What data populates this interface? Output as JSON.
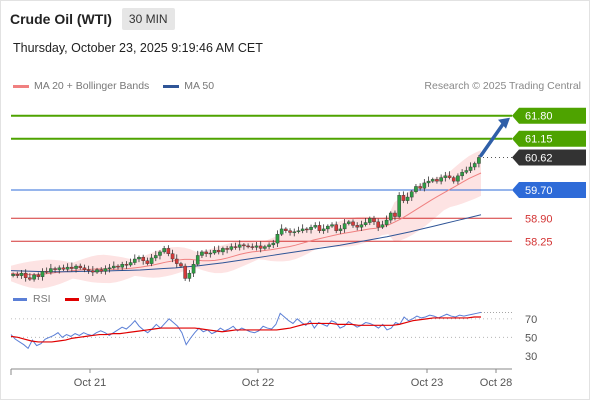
{
  "header": {
    "title": "Crude Oil (WTI)",
    "timeframe": "30 MIN",
    "timestamp": "Thursday, October 23, 2025 9:19:46 AM CET"
  },
  "legend": [
    {
      "label": "MA 20 + Bollinger Bands",
      "color": "#f08080"
    },
    {
      "label": "MA 50",
      "color": "#2f5597"
    }
  ],
  "credit": "Research © 2025 Trading Central",
  "rsi_legend": [
    {
      "label": "RSI",
      "color": "#5b7fd6"
    },
    {
      "label": "9MA",
      "color": "#e00000"
    }
  ],
  "colors": {
    "resistance": "#4ea300",
    "current": "#333333",
    "pivot": "#2e6bd8",
    "support": "#d33434",
    "bollinger_fill": "#fde3e3",
    "candle_up": "#2e9e44",
    "candle_down": "#d43a3a",
    "arrow": "#2f5fa8"
  },
  "chart_data": [
    {
      "type": "line",
      "chart": "price",
      "title": "Crude Oil (WTI)",
      "timeframe": "30 MIN",
      "ylim": [
        57.1,
        62.3
      ],
      "x_ticks": [
        "Oct 21",
        "Oct 22",
        "Oct 23",
        "Oct 28"
      ],
      "levels": [
        {
          "value": 61.8,
          "label": "61.80",
          "kind": "resistance"
        },
        {
          "value": 61.15,
          "label": "61.15",
          "kind": "resistance"
        },
        {
          "value": 60.62,
          "label": "60.62",
          "kind": "current"
        },
        {
          "value": 59.7,
          "label": "59.70",
          "kind": "pivot"
        },
        {
          "value": 58.9,
          "label": "58.90",
          "kind": "support"
        },
        {
          "value": 58.25,
          "label": "58.25",
          "kind": "support"
        }
      ],
      "close_series": [
        57.32,
        57.28,
        57.35,
        57.22,
        57.18,
        57.3,
        57.25,
        57.4,
        57.38,
        57.48,
        57.45,
        57.5,
        57.46,
        57.52,
        57.48,
        57.55,
        57.5,
        57.45,
        57.42,
        57.38,
        57.45,
        57.4,
        57.48,
        57.5,
        57.55,
        57.52,
        57.6,
        57.58,
        57.65,
        57.75,
        57.8,
        57.7,
        57.62,
        57.78,
        57.85,
        57.95,
        58.05,
        57.9,
        57.75,
        57.62,
        57.55,
        57.2,
        57.35,
        57.6,
        57.85,
        57.95,
        57.9,
        57.92,
        58.0,
        57.95,
        58.05,
        58.02,
        58.1,
        58.08,
        58.15,
        58.12,
        58.1,
        58.08,
        58.12,
        58.05,
        58.1,
        58.15,
        58.2,
        58.45,
        58.6,
        58.55,
        58.5,
        58.52,
        58.55,
        58.6,
        58.58,
        58.65,
        58.7,
        58.55,
        58.6,
        58.68,
        58.72,
        58.55,
        58.6,
        58.75,
        58.8,
        58.7,
        58.65,
        58.72,
        58.78,
        58.9,
        58.8,
        58.65,
        58.72,
        58.85,
        59.05,
        58.95,
        59.55,
        59.4,
        59.5,
        59.65,
        59.8,
        59.75,
        59.9,
        59.95,
        60.0,
        59.95,
        60.05,
        60.1,
        60.05,
        59.95,
        60.1,
        60.2,
        60.25,
        60.35,
        60.45,
        60.62
      ],
      "ma20_series": [
        57.34,
        57.33,
        57.32,
        57.31,
        57.31,
        57.32,
        57.34,
        57.36,
        57.38,
        57.4,
        57.42,
        57.44,
        57.45,
        57.46,
        57.47,
        57.47,
        57.46,
        57.46,
        57.47,
        57.48,
        57.5,
        57.52,
        57.55,
        57.58,
        57.62,
        57.66,
        57.69,
        57.72,
        57.74,
        57.74,
        57.72,
        57.7,
        57.7,
        57.71,
        57.74,
        57.78,
        57.83,
        57.88,
        57.92,
        57.95,
        57.97,
        57.99,
        58.01,
        58.04,
        58.07,
        58.1,
        58.14,
        58.19,
        58.24,
        58.29,
        58.33,
        58.37,
        58.41,
        58.45,
        58.48,
        58.51,
        58.54,
        58.57,
        58.6,
        58.62,
        58.66,
        58.71,
        58.79,
        58.88,
        58.98,
        59.09,
        59.2,
        59.31,
        59.42,
        59.52,
        59.62,
        59.72,
        59.82,
        59.92,
        60.02,
        60.1,
        60.18
      ],
      "ma50_series": [
        57.42,
        57.41,
        57.4,
        57.39,
        57.39,
        57.39,
        57.4,
        57.4,
        57.41,
        57.42,
        57.43,
        57.44,
        57.46,
        57.48,
        57.5,
        57.53,
        57.56,
        57.6,
        57.64,
        57.69,
        57.74,
        57.79,
        57.84,
        57.89,
        57.94,
        57.99,
        58.04,
        58.09,
        58.14,
        58.2,
        58.26,
        58.32,
        58.38,
        58.45,
        58.52,
        58.6,
        58.68,
        58.76,
        58.84,
        58.92,
        59.0
      ]
    },
    {
      "type": "line",
      "chart": "rsi",
      "ylim": [
        20,
        85
      ],
      "y_ticks": [
        30,
        50,
        70
      ],
      "rsi_series": [
        53,
        48,
        45,
        42,
        38,
        47,
        41,
        43,
        48,
        50,
        52,
        55,
        50,
        53,
        51,
        54,
        52,
        55,
        53,
        52,
        55,
        57,
        55,
        52,
        55,
        58,
        61,
        59,
        63,
        68,
        62,
        58,
        55,
        59,
        64,
        60,
        65,
        70,
        66,
        62,
        55,
        42,
        49,
        55,
        60,
        56,
        58,
        54,
        56,
        60,
        57,
        59,
        62,
        57,
        60,
        58,
        56,
        55,
        57,
        62,
        60,
        59,
        64,
        76,
        72,
        68,
        65,
        70,
        66,
        63,
        68,
        60,
        66,
        64,
        62,
        68,
        66,
        60,
        62,
        67,
        64,
        61,
        63,
        66,
        65,
        63,
        60,
        64,
        58,
        60,
        66,
        64,
        72,
        68,
        70,
        73,
        71,
        72,
        74,
        73,
        71,
        73,
        75,
        73,
        72,
        74,
        73,
        74,
        75,
        76,
        77
      ],
      "ma9_series": [
        51,
        50,
        48,
        46,
        45,
        45,
        45,
        46,
        47,
        49,
        50,
        51,
        52,
        53,
        53,
        54,
        54,
        55,
        56,
        57,
        58,
        59,
        60,
        60,
        60,
        60,
        60,
        60,
        59,
        58,
        57,
        56,
        57,
        58,
        58,
        58,
        58,
        58,
        58,
        58,
        59,
        60,
        62,
        64,
        65,
        65,
        65,
        65,
        64,
        64,
        64,
        63,
        63,
        63,
        63,
        63,
        63,
        64,
        66,
        68,
        69,
        70,
        71,
        71,
        71,
        71,
        71,
        71,
        72,
        72
      ]
    }
  ]
}
